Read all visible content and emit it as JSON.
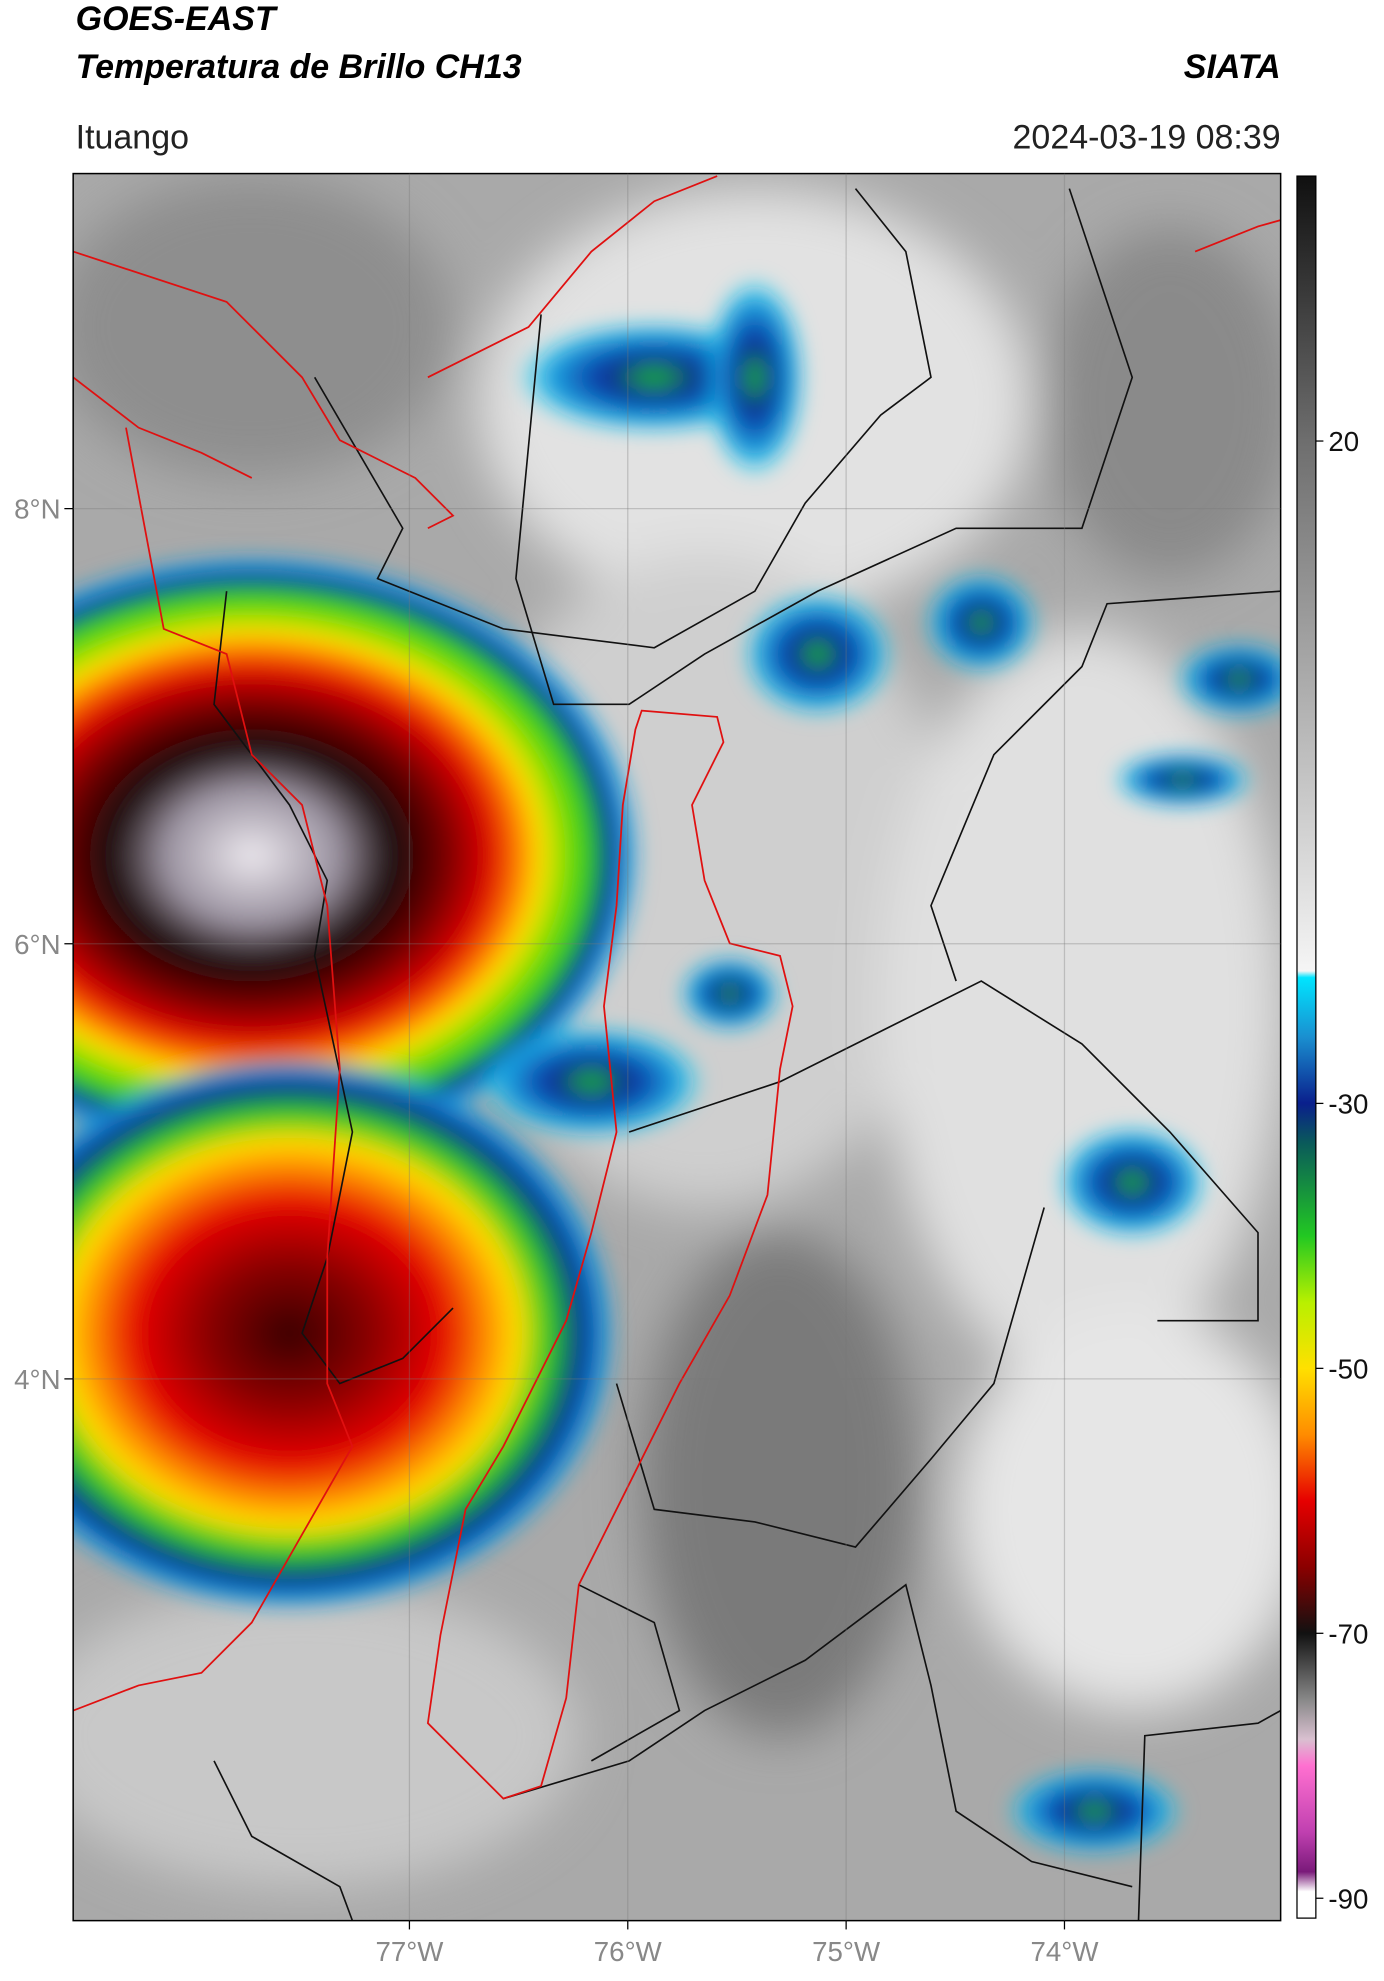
{
  "map": {
    "title": "GOES-EAST",
    "subtitle": "Temperatura de Brillo CH13",
    "brand": "SIATA",
    "location": "Ituango",
    "timestamp": "2024-03-19 08:39",
    "xlim": [
      -78.54,
      -73.01
    ],
    "ylim": [
      1.51,
      9.54
    ],
    "xticks": [
      {
        "value": -77,
        "label": "77°W"
      },
      {
        "value": -76,
        "label": "76°W"
      },
      {
        "value": -75,
        "label": "75°W"
      },
      {
        "value": -74,
        "label": "74°W"
      }
    ],
    "yticks": [
      {
        "value": 8,
        "label": "8°N"
      },
      {
        "value": 6,
        "label": "6°N"
      },
      {
        "value": 4,
        "label": "4°N"
      }
    ],
    "grid": true,
    "colorbar": {
      "lim": [
        -91.5,
        40
      ],
      "ticks": [
        20,
        -30,
        -50,
        -70,
        -90
      ],
      "colormap": [
        {
          "value": 40,
          "color": "#101010"
        },
        {
          "value": 20,
          "color": "#6e6e6e"
        },
        {
          "value": -20,
          "color": "#f5f5f5"
        },
        {
          "value": -20.5,
          "color": "#00e5ff"
        },
        {
          "value": -25,
          "color": "#1a8fd0"
        },
        {
          "value": -30,
          "color": "#0a1f8c"
        },
        {
          "value": -33,
          "color": "#0a5a5a"
        },
        {
          "value": -40,
          "color": "#22c822"
        },
        {
          "value": -45,
          "color": "#b8f000"
        },
        {
          "value": -50,
          "color": "#ffe000"
        },
        {
          "value": -55,
          "color": "#ff8c00"
        },
        {
          "value": -60,
          "color": "#e60000"
        },
        {
          "value": -65,
          "color": "#8b0000"
        },
        {
          "value": -70,
          "color": "#111111"
        },
        {
          "value": -75,
          "color": "#888888"
        },
        {
          "value": -78,
          "color": "#d9c0d0"
        },
        {
          "value": -80,
          "color": "#ff70d0"
        },
        {
          "value": -85,
          "color": "#c040b0"
        },
        {
          "value": -88,
          "color": "#7a1a7a"
        },
        {
          "value": -89.5,
          "color": "#ffffff"
        },
        {
          "value": -91.5,
          "color": "#ffffff"
        }
      ]
    }
  }
}
